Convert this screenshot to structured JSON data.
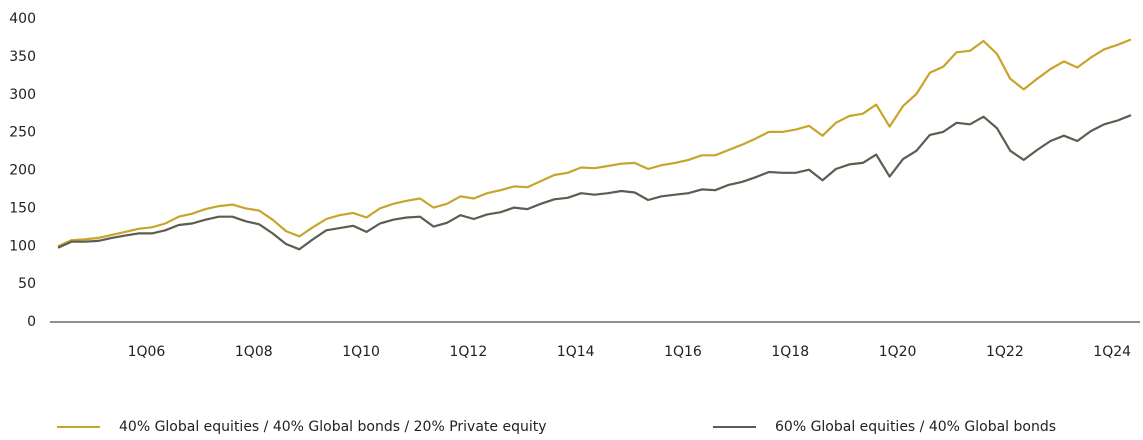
{
  "chart_data": {
    "type": "line",
    "categories": [
      null,
      null,
      null,
      null,
      null,
      null,
      "1Q06",
      null,
      null,
      null,
      null,
      null,
      null,
      null,
      "1Q08",
      null,
      null,
      null,
      null,
      null,
      null,
      null,
      "1Q10",
      null,
      null,
      null,
      null,
      null,
      null,
      null,
      "1Q12",
      null,
      null,
      null,
      null,
      null,
      null,
      null,
      "1Q14",
      null,
      null,
      null,
      null,
      null,
      null,
      null,
      "1Q16",
      null,
      null,
      null,
      null,
      null,
      null,
      null,
      "1Q18",
      null,
      null,
      null,
      null,
      null,
      null,
      null,
      "1Q20",
      null,
      null,
      null,
      null,
      null,
      null,
      null,
      "1Q22",
      null,
      null,
      null,
      null,
      null,
      null,
      null,
      "1Q24",
      null,
      null
    ],
    "series": [
      {
        "name": "40% Global equities / 40% Global bonds / 20% Private equity",
        "color": "#c8a52a",
        "values": [
          100,
          108,
          109,
          111,
          115,
          119,
          123,
          125,
          130,
          139,
          143,
          149,
          153,
          155,
          150,
          147,
          135,
          120,
          113,
          125,
          136,
          141,
          144,
          138,
          150,
          156,
          160,
          163,
          151,
          156,
          166,
          163,
          170,
          174,
          179,
          178,
          186,
          194,
          197,
          204,
          203,
          206,
          209,
          210,
          202,
          207,
          210,
          214,
          220,
          220,
          227,
          234,
          242,
          251,
          251,
          254,
          259,
          246,
          263,
          272,
          275,
          287,
          258,
          285,
          301,
          329,
          337,
          356,
          358,
          371,
          354,
          321,
          307,
          321,
          334,
          344,
          336,
          349,
          360,
          366,
          373
        ]
      },
      {
        "name": "60% Global equities / 40% Global bonds",
        "color": "#5c5c50",
        "values": [
          98,
          106,
          106,
          107,
          111,
          114,
          117,
          117,
          121,
          128,
          130,
          135,
          139,
          139,
          133,
          129,
          117,
          103,
          96,
          109,
          121,
          124,
          127,
          119,
          130,
          135,
          138,
          139,
          126,
          131,
          141,
          136,
          142,
          145,
          151,
          149,
          156,
          162,
          164,
          170,
          168,
          170,
          173,
          171,
          161,
          166,
          168,
          170,
          175,
          174,
          181,
          185,
          191,
          198,
          197,
          197,
          201,
          187,
          202,
          208,
          210,
          221,
          192,
          215,
          226,
          247,
          251,
          263,
          261,
          271,
          256,
          226,
          214,
          227,
          239,
          246,
          239,
          252,
          261,
          266,
          273
        ]
      }
    ],
    "ylim": [
      0,
      400
    ],
    "yticks": [
      0,
      50,
      100,
      150,
      200,
      250,
      300,
      350,
      400
    ]
  }
}
